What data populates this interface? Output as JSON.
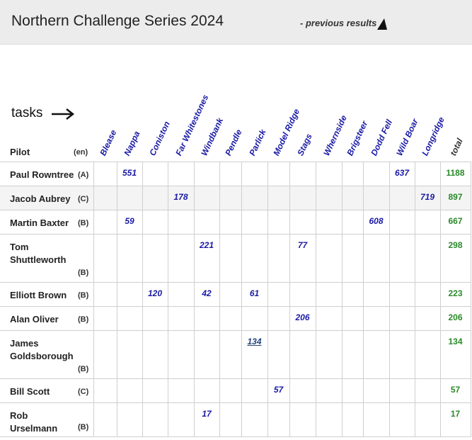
{
  "header": {
    "title": "Northern Challenge Series 2024",
    "prev_link": "- previous results"
  },
  "tasks_label": "tasks",
  "columns": {
    "pilot": "Pilot",
    "lang": "(en)",
    "tasks": [
      "Blease",
      "Nappa",
      "Coniston",
      "Far Whitestones",
      "Windbank",
      "Pendle",
      "Parlick",
      "Model Ridge",
      "Stags",
      "Whernside",
      "Brigsteer",
      "Dodd Fell",
      "Wild Boar",
      "Longridge"
    ],
    "total": "total"
  },
  "rows": [
    {
      "name": "Paul Rowntree",
      "cls": "(A)",
      "scores": {
        "Nappa": "551",
        "Wild Boar": "637"
      },
      "total": "1188"
    },
    {
      "name": "Jacob Aubrey",
      "cls": "(C)",
      "scores": {
        "Far Whitestones": "178",
        "Longridge": "719"
      },
      "total": "897"
    },
    {
      "name": "Martin Baxter",
      "cls": "(B)",
      "scores": {
        "Nappa": "59",
        "Dodd Fell": "608"
      },
      "total": "667"
    },
    {
      "name": "Tom Shuttleworth",
      "cls": "(B)",
      "scores": {
        "Windbank": "221",
        "Stags": "77"
      },
      "total": "298"
    },
    {
      "name": "Elliott Brown",
      "cls": "(B)",
      "scores": {
        "Coniston": "120",
        "Windbank": "42",
        "Parlick": "61"
      },
      "total": "223"
    },
    {
      "name": "Alan Oliver",
      "cls": "(B)",
      "scores": {
        "Stags": "206"
      },
      "total": "206"
    },
    {
      "name": "James Goldsborough",
      "cls": "(B)",
      "scores": {
        "Parlick": "134"
      },
      "total": "134"
    },
    {
      "name": "Bill Scott",
      "cls": "(C)",
      "scores": {
        "Model Ridge": "57"
      },
      "total": "57"
    },
    {
      "name": "Rob Urselmann",
      "cls": "(B)",
      "scores": {
        "Windbank": "17"
      },
      "total": "17"
    }
  ]
}
